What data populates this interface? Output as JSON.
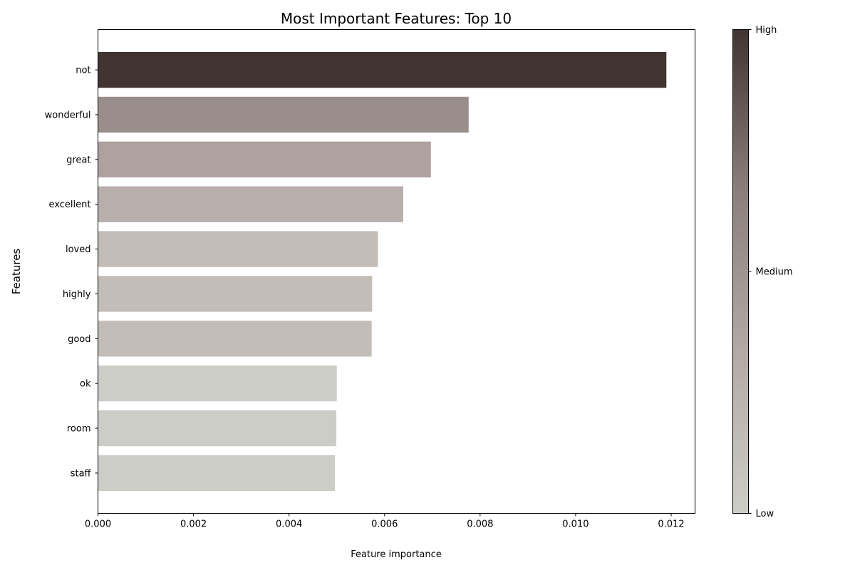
{
  "chart_data": {
    "type": "bar",
    "orientation": "horizontal",
    "title": "Most Important Features: Top 10",
    "xlabel": "Feature importance",
    "ylabel": "Features",
    "xlim": [
      0,
      0.0125
    ],
    "xticks": [
      0.0,
      0.002,
      0.004,
      0.006,
      0.008,
      0.01,
      0.012
    ],
    "xtick_labels": [
      "0.000",
      "0.002",
      "0.004",
      "0.006",
      "0.008",
      "0.010",
      "0.012"
    ],
    "grid": false,
    "categories": [
      "not",
      "wonderful",
      "great",
      "excellent",
      "loved",
      "highly",
      "good",
      "ok",
      "room",
      "staff"
    ],
    "values": [
      0.0119,
      0.00776,
      0.00697,
      0.00639,
      0.00586,
      0.00574,
      0.00573,
      0.005,
      0.00499,
      0.00496
    ],
    "bar_colors": [
      "#403533",
      "#9a8e8b",
      "#aea19f",
      "#b8aeab",
      "#c2bcb6",
      "#c2bdb7",
      "#c2bdb7",
      "#cccdc6",
      "#cccdc6",
      "#cccdc6"
    ],
    "colorbar": {
      "colors": [
        "#cccdc6",
        "#b3a9a5",
        "#8a7f7b",
        "#403533"
      ],
      "tick_labels": [
        "Low",
        "Medium",
        "High"
      ]
    }
  }
}
